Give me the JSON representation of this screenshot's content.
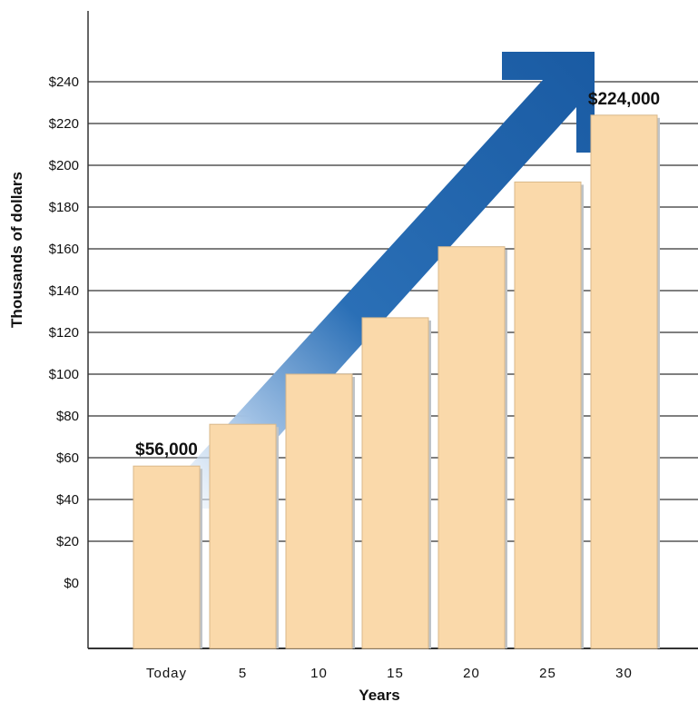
{
  "chart_data": {
    "type": "bar",
    "categories": [
      "Today",
      "5",
      "10",
      "15",
      "20",
      "25",
      "30"
    ],
    "values": [
      56,
      76,
      100,
      127,
      161,
      192,
      224
    ],
    "xlabel": "Years",
    "ylabel": "Thousands of dollars",
    "ylim": [
      0,
      240
    ],
    "yticks": [
      "$0",
      "$20",
      "$40",
      "$60",
      "$80",
      "$100",
      "$120",
      "$140",
      "$160",
      "$180",
      "$200",
      "$220",
      "$240"
    ],
    "annotations": [
      {
        "category": "Today",
        "text": "$56,000"
      },
      {
        "category": "30",
        "text": "$224,000"
      }
    ],
    "grid": true,
    "colors": {
      "bar_fill": "#fad9aa",
      "bar_stroke": "#d9b88a",
      "bar_shadow": "#bfc3c7",
      "arrow": "#1e64ad",
      "arrow_light": "#9fc0e4",
      "grid": "#333333"
    }
  }
}
